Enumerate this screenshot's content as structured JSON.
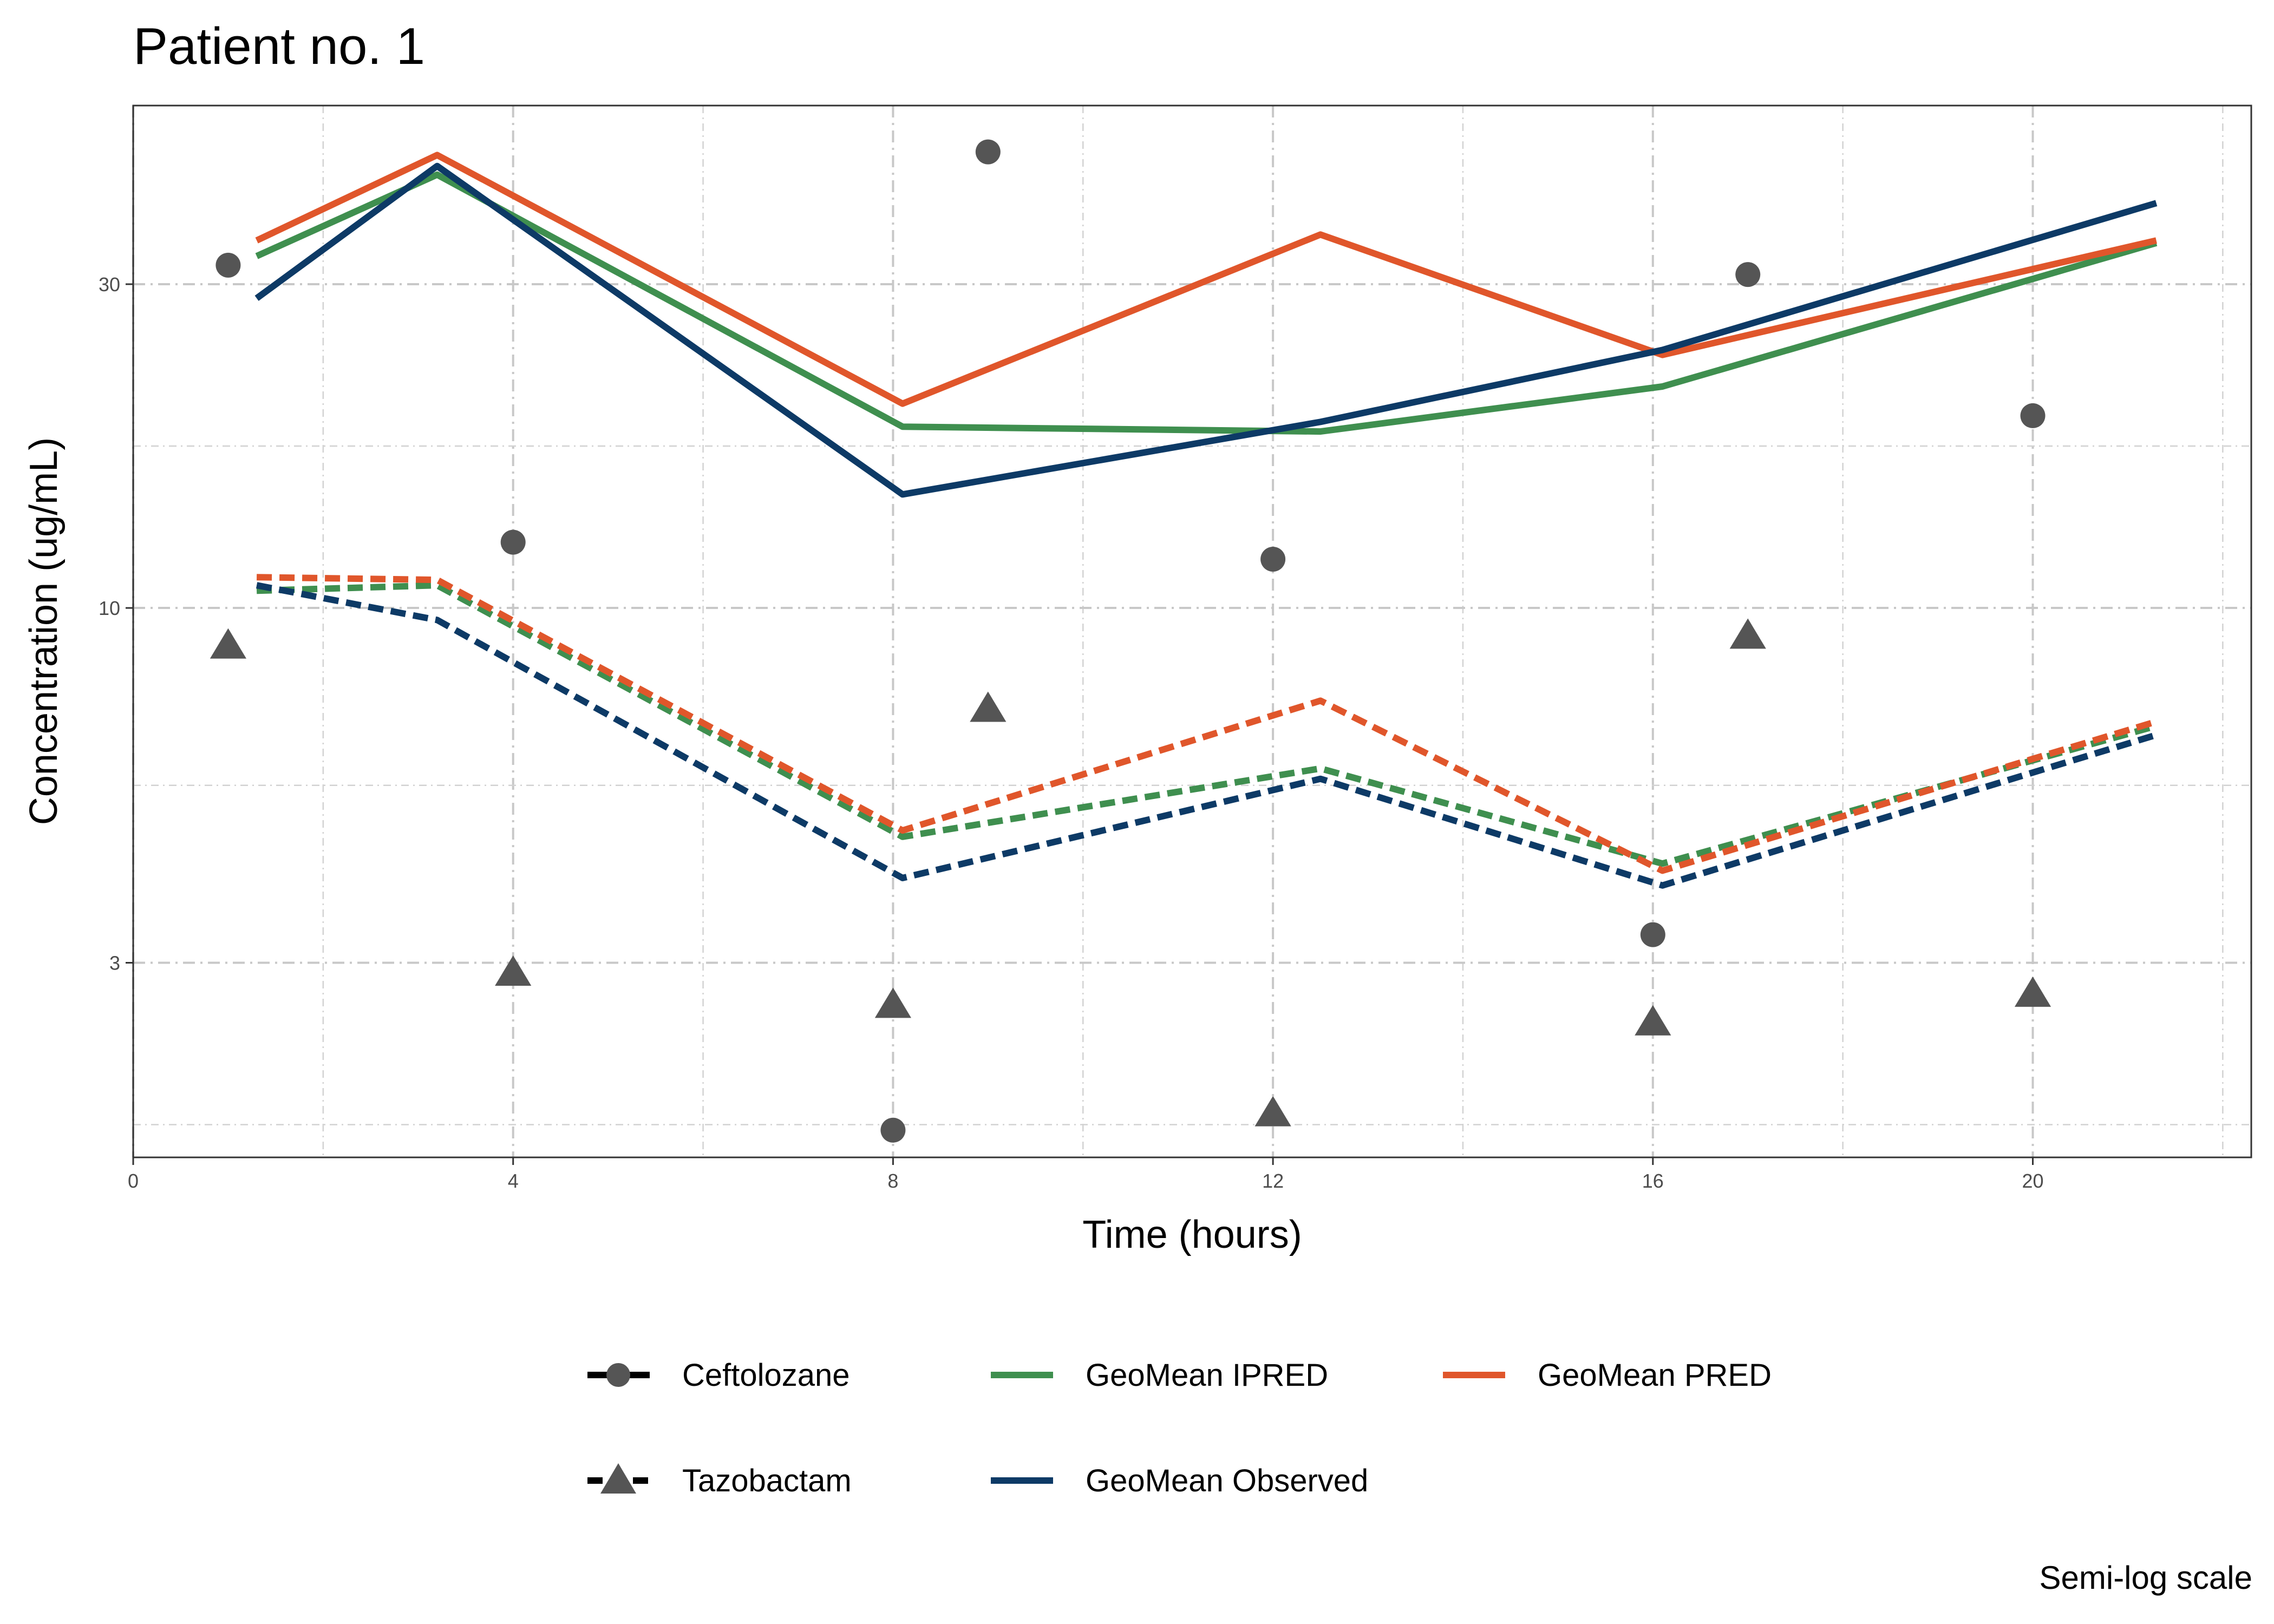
{
  "chart_data": {
    "type": "line",
    "title": "Patient no. 1",
    "xlabel": "Time (hours)",
    "ylabel": "Concentration (ug/mL)",
    "caption": "Semi-log scale",
    "y_scale": "log10",
    "xlim": [
      0,
      22.3
    ],
    "ylim": [
      1.55,
      55
    ],
    "x_ticks": [
      0,
      4,
      8,
      12,
      16,
      20
    ],
    "y_ticks": [
      3,
      10,
      30
    ],
    "grid": true,
    "series": [
      {
        "name": "Ceftolozane GeoMean IPRED",
        "drug": "Ceftolozane",
        "kind": "GeoMean IPRED",
        "color": "#3f8f4f",
        "dash": "solid",
        "x": [
          1.3,
          3.2,
          8.1,
          12.5,
          16.1,
          21.3
        ],
        "y": [
          33,
          43.5,
          18.5,
          18.2,
          21.2,
          34.5
        ]
      },
      {
        "name": "Ceftolozane GeoMean PRED",
        "drug": "Ceftolozane",
        "kind": "GeoMean PRED",
        "color": "#e0562b",
        "dash": "solid",
        "x": [
          1.3,
          3.2,
          8.1,
          12.5,
          16.1,
          21.3
        ],
        "y": [
          34.8,
          46.5,
          20,
          35.5,
          23.6,
          34.8
        ]
      },
      {
        "name": "Ceftolozane GeoMean Observed",
        "drug": "Ceftolozane",
        "kind": "GeoMean Observed",
        "color": "#0d3a66",
        "dash": "solid",
        "x": [
          1.3,
          3.2,
          8.1,
          12.5,
          16.1,
          21.3
        ],
        "y": [
          28.6,
          44.8,
          14.7,
          18.8,
          24.0,
          39.5
        ]
      },
      {
        "name": "Tazobactam GeoMean IPRED",
        "drug": "Tazobactam",
        "kind": "GeoMean IPRED",
        "color": "#3f8f4f",
        "dash": "dashed",
        "x": [
          1.3,
          3.2,
          8.1,
          12.5,
          16.1,
          21.3
        ],
        "y": [
          10.6,
          10.8,
          4.6,
          5.8,
          4.2,
          6.7
        ]
      },
      {
        "name": "Tazobactam GeoMean PRED",
        "drug": "Tazobactam",
        "kind": "GeoMean PRED",
        "color": "#e0562b",
        "dash": "dashed",
        "x": [
          1.3,
          3.2,
          8.1,
          12.5,
          16.1,
          21.3
        ],
        "y": [
          11.1,
          11.0,
          4.7,
          7.3,
          4.1,
          6.8
        ]
      },
      {
        "name": "Tazobactam GeoMean Observed",
        "drug": "Tazobactam",
        "kind": "GeoMean Observed",
        "color": "#0d3a66",
        "dash": "dashed",
        "x": [
          1.3,
          3.2,
          8.1,
          12.5,
          16.1,
          21.3
        ],
        "y": [
          10.8,
          9.6,
          4.0,
          5.6,
          3.9,
          6.5
        ]
      }
    ],
    "points": [
      {
        "drug": "Ceftolozane",
        "shape": "circle",
        "color": "#555555",
        "x": [
          1,
          4,
          8,
          9,
          12,
          16,
          17,
          20
        ],
        "y": [
          32,
          12.5,
          1.7,
          47,
          11.8,
          3.3,
          31,
          19.2
        ]
      },
      {
        "drug": "Tazobactam",
        "shape": "triangle",
        "color": "#555555",
        "x": [
          1,
          4,
          8,
          9,
          12,
          16,
          17,
          20
        ],
        "y": [
          8.8,
          2.9,
          2.6,
          7.1,
          1.8,
          2.45,
          9.1,
          2.7
        ]
      }
    ],
    "legend": {
      "position": "bottom",
      "items": [
        {
          "label": "Ceftolozane",
          "symbol": "circle",
          "dash": "solid",
          "color": "#000000"
        },
        {
          "label": "GeoMean IPRED",
          "symbol": "none",
          "dash": "solid",
          "color": "#3f8f4f"
        },
        {
          "label": "GeoMean PRED",
          "symbol": "none",
          "dash": "solid",
          "color": "#e0562b"
        },
        {
          "label": "Tazobactam",
          "symbol": "triangle",
          "dash": "dashed",
          "color": "#000000"
        },
        {
          "label": "GeoMean Observed",
          "symbol": "none",
          "dash": "solid",
          "color": "#0d3a66"
        }
      ]
    }
  }
}
